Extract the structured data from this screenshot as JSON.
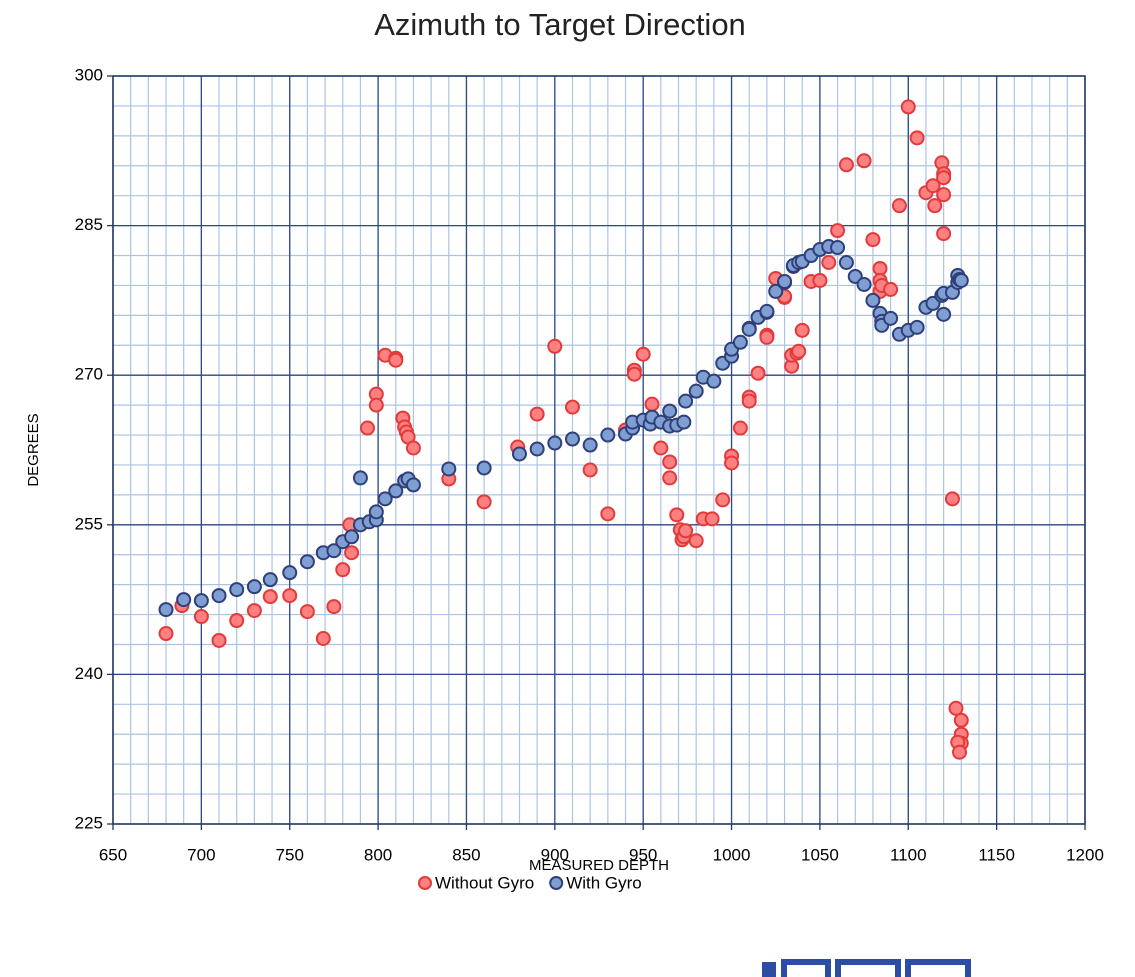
{
  "chart_data": {
    "type": "scatter",
    "title": "Azimuth to Target Direction",
    "x_label": "MEASURED DEPTH",
    "y_label": "DEGREES",
    "xlim": [
      650,
      1200
    ],
    "ylim": [
      225,
      300
    ],
    "xticks": [
      650,
      700,
      750,
      800,
      850,
      900,
      950,
      1000,
      1050,
      1100,
      1150,
      1200
    ],
    "yticks": [
      225,
      240,
      255,
      270,
      285,
      300
    ],
    "grid": true,
    "minor_grid": {
      "x": 10,
      "y": 3
    },
    "legend": "bottom",
    "series": [
      {
        "name": "Without Gyro",
        "color": "#ff8080",
        "edge_color": "#e23a3a",
        "x": [
          680,
          689,
          700,
          710,
          720,
          730,
          739,
          750,
          760,
          769,
          775,
          780,
          785,
          784,
          794,
          799,
          799,
          804,
          810,
          810,
          814,
          815,
          816,
          817,
          820,
          840,
          860,
          879,
          890,
          900,
          910,
          920,
          930,
          940,
          945,
          945,
          950,
          955,
          960,
          965,
          965,
          969,
          971,
          972,
          973,
          974,
          980,
          984,
          989,
          995,
          1000,
          1000,
          1005,
          1010,
          1010,
          1015,
          1020,
          1020,
          1025,
          1030,
          1030,
          1034,
          1034,
          1037,
          1038,
          1040,
          1045,
          1050,
          1055,
          1060,
          1065,
          1075,
          1080,
          1084,
          1084,
          1084,
          1085,
          1090,
          1095,
          1100,
          1105,
          1110,
          1114,
          1115,
          1119,
          1120,
          1120,
          1120,
          1120,
          1125,
          1127,
          1130,
          1130,
          1130,
          1128,
          1129
        ],
        "values": [
          244.1,
          246.9,
          245.8,
          243.4,
          245.4,
          246.4,
          247.8,
          247.9,
          246.3,
          243.6,
          246.8,
          250.5,
          252.2,
          255.0,
          264.7,
          268.1,
          267.0,
          272.0,
          271.7,
          271.5,
          265.7,
          264.8,
          264.3,
          263.8,
          262.7,
          259.6,
          257.3,
          262.8,
          266.1,
          272.9,
          266.8,
          260.5,
          256.1,
          264.5,
          270.5,
          270.1,
          272.1,
          267.1,
          262.7,
          261.3,
          259.7,
          256.0,
          254.5,
          253.5,
          253.8,
          254.4,
          253.4,
          255.6,
          255.6,
          257.5,
          261.9,
          261.2,
          264.7,
          267.8,
          267.4,
          270.2,
          274.0,
          273.8,
          279.7,
          277.8,
          277.9,
          270.9,
          272.0,
          272.2,
          272.4,
          274.5,
          279.4,
          279.5,
          281.3,
          284.5,
          291.1,
          291.5,
          283.6,
          280.7,
          279.5,
          278.4,
          279.0,
          278.6,
          287.0,
          296.9,
          293.8,
          288.3,
          289.0,
          287.0,
          291.3,
          290.2,
          289.8,
          288.1,
          284.2,
          257.6,
          236.6,
          235.4,
          234.0,
          233.1,
          233.2,
          232.2
        ]
      },
      {
        "name": "With Gyro",
        "color": "#7f9fd3",
        "edge_color": "#2f3f7a",
        "x": [
          680,
          690,
          700,
          710,
          720,
          730,
          739,
          750,
          760,
          769,
          775,
          780,
          785,
          790,
          795,
          799,
          799,
          804,
          810,
          815,
          817,
          820,
          790,
          840,
          860,
          880,
          890,
          900,
          910,
          920,
          930,
          940,
          944,
          944,
          950,
          954,
          955,
          960,
          965,
          965,
          969,
          973,
          974,
          980,
          984,
          990,
          995,
          1000,
          1000,
          1005,
          1010,
          1010,
          1015,
          1020,
          1020,
          1025,
          1030,
          1030,
          1035,
          1035,
          1038,
          1040,
          1045,
          1050,
          1055,
          1060,
          1065,
          1070,
          1075,
          1080,
          1084,
          1085,
          1085,
          1090,
          1095,
          1100,
          1105,
          1110,
          1114,
          1119,
          1120,
          1120,
          1125,
          1128,
          1128,
          1129,
          1130
        ],
        "values": [
          246.5,
          247.5,
          247.4,
          247.9,
          248.5,
          248.8,
          249.5,
          250.2,
          251.3,
          252.2,
          252.4,
          253.3,
          253.8,
          255.0,
          255.3,
          255.5,
          256.3,
          257.6,
          258.4,
          259.4,
          259.6,
          259.0,
          259.7,
          260.6,
          260.7,
          262.1,
          262.6,
          263.2,
          263.6,
          263.0,
          264.0,
          264.1,
          264.7,
          265.3,
          265.5,
          265.1,
          265.8,
          265.3,
          264.9,
          266.4,
          265.0,
          265.3,
          267.4,
          268.4,
          269.8,
          269.4,
          271.2,
          271.9,
          272.6,
          273.3,
          274.7,
          274.6,
          275.8,
          276.3,
          276.4,
          278.4,
          279.3,
          279.4,
          280.9,
          281.0,
          281.3,
          281.4,
          282.0,
          282.6,
          282.9,
          282.8,
          281.3,
          279.9,
          279.1,
          277.5,
          276.2,
          275.4,
          275.0,
          275.7,
          274.1,
          274.5,
          274.8,
          276.8,
          277.2,
          278.0,
          278.2,
          276.1,
          278.3,
          279.3,
          280.0,
          279.6,
          279.5
        ]
      }
    ]
  }
}
